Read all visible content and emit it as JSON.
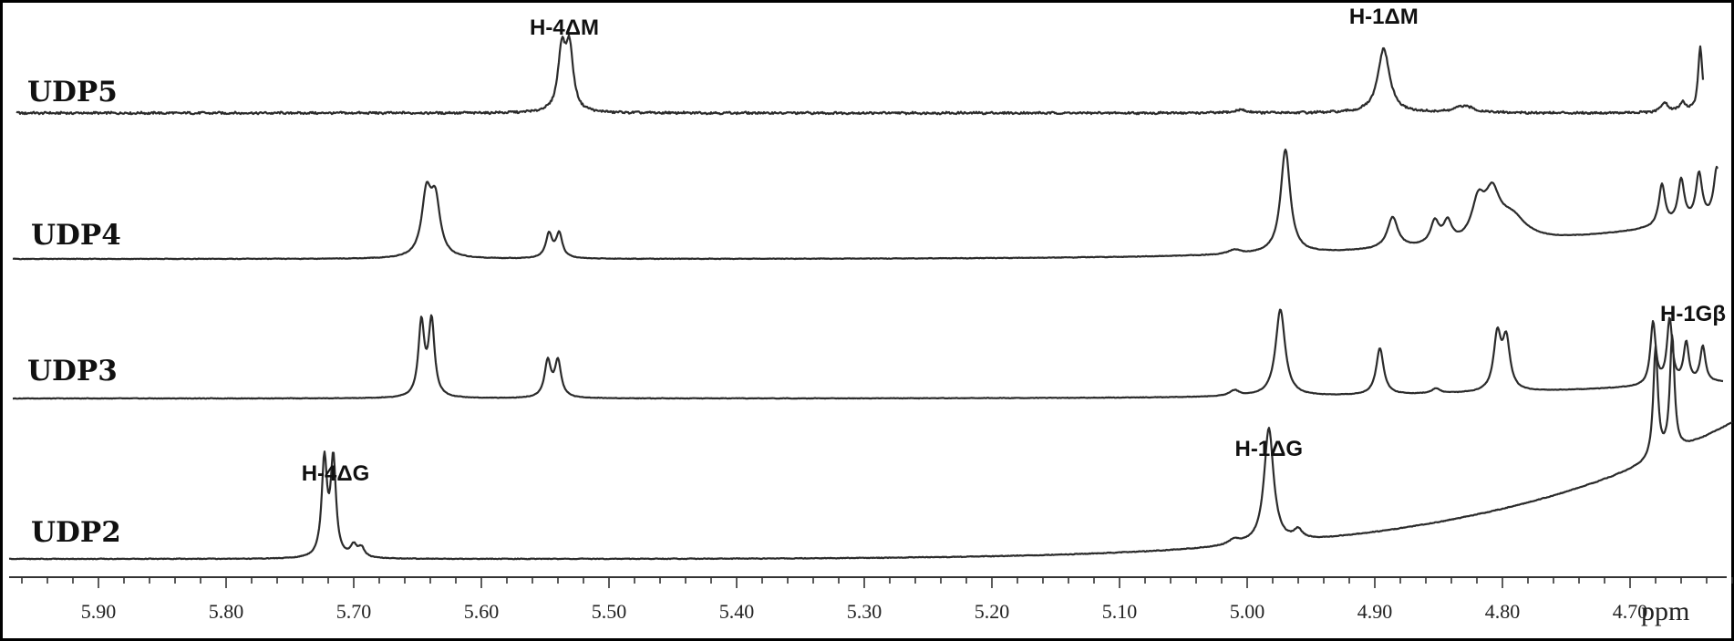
{
  "chart_data": {
    "type": "line",
    "x_axis": {
      "reversed": true,
      "range": [
        5.97,
        4.62
      ],
      "ticks": [
        5.9,
        5.8,
        5.7,
        5.6,
        5.5,
        5.4,
        5.3,
        5.2,
        5.1,
        5.0,
        4.9,
        4.8,
        4.7
      ],
      "tick_labels": [
        "5.90",
        "5.80",
        "5.70",
        "5.60",
        "5.50",
        "5.40",
        "5.30",
        "5.20",
        "5.10",
        "5.00",
        "4.90",
        "4.80",
        "4.70"
      ],
      "minor_step": 0.02,
      "unit": "ppm"
    },
    "series": [
      {
        "name": "UDP5",
        "peaks": [
          {
            "x": 5.537,
            "h": 0.8,
            "w": 0.0035
          },
          {
            "x": 5.531,
            "h": 0.82,
            "w": 0.0035
          },
          {
            "x": 5.005,
            "h": 0.04,
            "w": 0.006
          },
          {
            "x": 4.893,
            "h": 0.86,
            "w": 0.0055
          },
          {
            "x": 4.83,
            "h": 0.09,
            "w": 0.009
          },
          {
            "x": 4.673,
            "h": 0.14,
            "w": 0.003
          },
          {
            "x": 4.659,
            "h": 0.13,
            "w": 0.003
          },
          {
            "x": 4.645,
            "h": 0.85,
            "w": 0.002
          },
          {
            "x": 4.634,
            "h": 0.3,
            "w": 0.003
          },
          {
            "x": 4.625,
            "h": 0.2,
            "w": 0.004
          }
        ],
        "baseline": {
          "start": 0.0,
          "end": 0.0,
          "noise": 0.022
        }
      },
      {
        "name": "UDP4",
        "peaks": [
          {
            "x": 5.643,
            "h": 0.7,
            "w": 0.0045
          },
          {
            "x": 5.636,
            "h": 0.62,
            "w": 0.0045
          },
          {
            "x": 5.547,
            "h": 0.28,
            "w": 0.003
          },
          {
            "x": 5.539,
            "h": 0.28,
            "w": 0.003
          },
          {
            "x": 5.01,
            "h": 0.05,
            "w": 0.006
          },
          {
            "x": 4.97,
            "h": 1.2,
            "w": 0.0045
          },
          {
            "x": 4.886,
            "h": 0.36,
            "w": 0.005
          },
          {
            "x": 4.853,
            "h": 0.26,
            "w": 0.004
          },
          {
            "x": 4.843,
            "h": 0.24,
            "w": 0.004
          },
          {
            "x": 4.819,
            "h": 0.42,
            "w": 0.006
          },
          {
            "x": 4.808,
            "h": 0.48,
            "w": 0.007
          },
          {
            "x": 4.793,
            "h": 0.28,
            "w": 0.014
          },
          {
            "x": 4.675,
            "h": 0.48,
            "w": 0.003
          },
          {
            "x": 4.66,
            "h": 0.5,
            "w": 0.003
          },
          {
            "x": 4.646,
            "h": 0.54,
            "w": 0.003
          },
          {
            "x": 4.632,
            "h": 0.58,
            "w": 0.003
          }
        ],
        "baseline": {
          "start": 0.0,
          "end": 0.45,
          "noise": 0.005
        }
      },
      {
        "name": "UDP3",
        "peaks": [
          {
            "x": 5.647,
            "h": 0.92,
            "w": 0.0028
          },
          {
            "x": 5.639,
            "h": 0.94,
            "w": 0.0028
          },
          {
            "x": 5.548,
            "h": 0.45,
            "w": 0.003
          },
          {
            "x": 5.54,
            "h": 0.45,
            "w": 0.003
          },
          {
            "x": 5.01,
            "h": 0.07,
            "w": 0.005
          },
          {
            "x": 4.974,
            "h": 1.08,
            "w": 0.0045
          },
          {
            "x": 4.896,
            "h": 0.58,
            "w": 0.0035
          },
          {
            "x": 4.852,
            "h": 0.06,
            "w": 0.004
          },
          {
            "x": 4.804,
            "h": 0.68,
            "w": 0.0035
          },
          {
            "x": 4.797,
            "h": 0.62,
            "w": 0.0035
          },
          {
            "x": 4.682,
            "h": 0.78,
            "w": 0.0025
          },
          {
            "x": 4.669,
            "h": 0.8,
            "w": 0.0025
          },
          {
            "x": 4.656,
            "h": 0.5,
            "w": 0.0025
          },
          {
            "x": 4.643,
            "h": 0.45,
            "w": 0.0025
          }
        ],
        "baseline": {
          "start": 0.0,
          "end": 0.2,
          "noise": 0.005
        }
      },
      {
        "name": "UDP2",
        "peaks": [
          {
            "x": 5.723,
            "h": 0.92,
            "w": 0.0025
          },
          {
            "x": 5.716,
            "h": 0.92,
            "w": 0.0025
          },
          {
            "x": 5.7,
            "h": 0.11,
            "w": 0.003
          },
          {
            "x": 5.694,
            "h": 0.09,
            "w": 0.003
          },
          {
            "x": 5.01,
            "h": 0.05,
            "w": 0.006
          },
          {
            "x": 4.983,
            "h": 1.1,
            "w": 0.0045
          },
          {
            "x": 4.96,
            "h": 0.09,
            "w": 0.004
          },
          {
            "x": 4.68,
            "h": 1.05,
            "w": 0.0022
          },
          {
            "x": 4.667,
            "h": 1.1,
            "w": 0.0022
          }
        ],
        "baseline": {
          "start": 0.0,
          "end": 1.3,
          "noise": 0.005
        }
      }
    ],
    "annotations": [
      {
        "text": "H-4ΔM",
        "series": "UDP5",
        "x": 5.535
      },
      {
        "text": "H-1ΔM",
        "series": "UDP5",
        "x": 4.893
      },
      {
        "text": "H-1Gβ",
        "series": "UDP3",
        "x": 4.665
      },
      {
        "text": "H-4ΔG",
        "series": "UDP2",
        "x": 5.72
      },
      {
        "text": "H-1ΔG",
        "series": "UDP2",
        "x": 4.983
      }
    ]
  }
}
